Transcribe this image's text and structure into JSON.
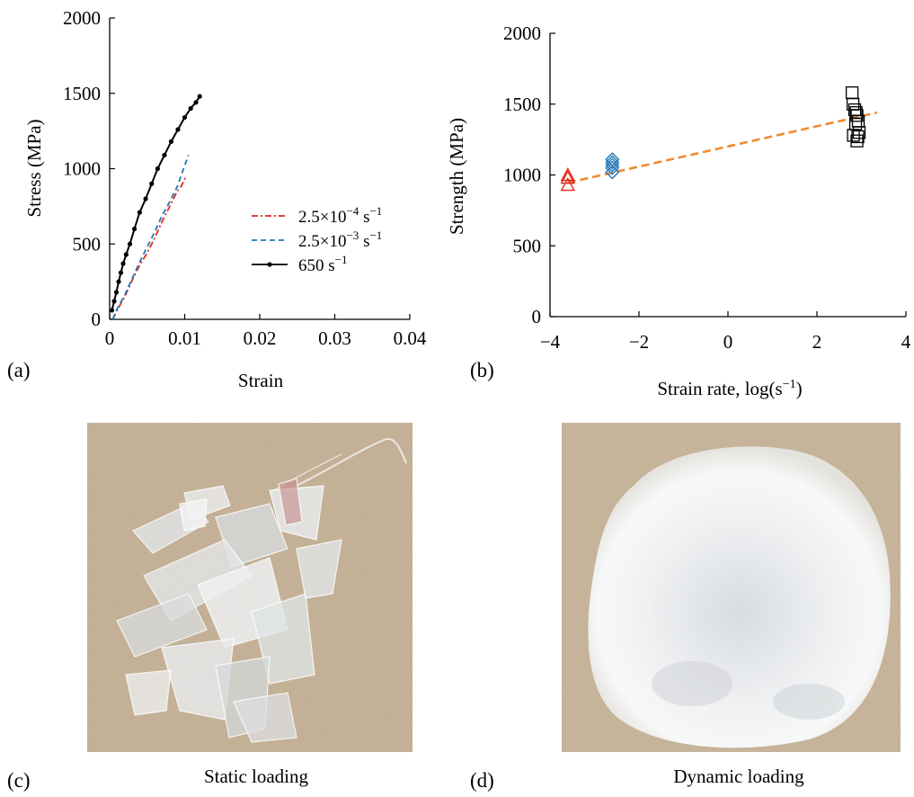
{
  "panels": {
    "a_label": "(a)",
    "b_label": "(b)",
    "c_label": "(c)",
    "d_label": "(d)",
    "c_caption": "Static loading",
    "d_caption": "Dynamic loading"
  },
  "chart_data": [
    {
      "type": "line",
      "xlabel": "Strain",
      "ylabel": "Stress (MPa)",
      "xlim": [
        0,
        0.04
      ],
      "ylim": [
        0,
        2000
      ],
      "xticks": [
        0,
        0.01,
        0.02,
        0.03,
        0.04
      ],
      "xtick_labels": [
        "0",
        "0.01",
        "0.02",
        "0.03",
        "0.04"
      ],
      "yticks": [
        0,
        500,
        1000,
        1500,
        2000
      ],
      "ytick_labels": [
        "0",
        "500",
        "1000",
        "1500",
        "2000"
      ],
      "grid": false,
      "legend_position": "right",
      "series": [
        {
          "name_base": "2.5×10",
          "name_exp": "−4",
          "name_unit": " s",
          "name_unit_exp": "−1",
          "style": "dash-dot",
          "color": "#e0281e",
          "x": [
            0.0004,
            0.001,
            0.002,
            0.003,
            0.004,
            0.005,
            0.006,
            0.007,
            0.008,
            0.009,
            0.0095,
            0.0102
          ],
          "y": [
            0,
            60,
            150,
            260,
            360,
            440,
            540,
            650,
            750,
            850,
            880,
            950
          ]
        },
        {
          "name_base": "2.5×10",
          "name_exp": "−3",
          "name_unit": " s",
          "name_unit_exp": "−1",
          "style": "dashed",
          "color": "#1f77b4",
          "x": [
            0.0004,
            0.001,
            0.002,
            0.003,
            0.004,
            0.005,
            0.006,
            0.007,
            0.008,
            0.009,
            0.0105
          ],
          "y": [
            0,
            70,
            160,
            270,
            380,
            480,
            580,
            690,
            780,
            880,
            1090
          ]
        },
        {
          "name_base": "650",
          "name_exp": "",
          "name_unit": " s",
          "name_unit_exp": "−1",
          "style": "solid-markers",
          "color": "#000000",
          "x": [
            0.0003,
            0.0006,
            0.0009,
            0.0012,
            0.0015,
            0.0018,
            0.0022,
            0.0027,
            0.0033,
            0.004,
            0.0048,
            0.0056,
            0.0064,
            0.0073,
            0.0082,
            0.0091,
            0.01,
            0.0108,
            0.0115,
            0.012
          ],
          "y": [
            60,
            120,
            180,
            250,
            310,
            370,
            430,
            500,
            600,
            710,
            800,
            900,
            1000,
            1090,
            1180,
            1260,
            1340,
            1400,
            1440,
            1480
          ]
        }
      ]
    },
    {
      "type": "scatter",
      "xlabel_base": "Strain rate, log(s",
      "xlabel_exp": "−1",
      "xlabel_end": ")",
      "ylabel": "Strength (MPa)",
      "xlim": [
        -4,
        4
      ],
      "ylim": [
        0,
        2000
      ],
      "xticks": [
        -4,
        -2,
        0,
        2,
        4
      ],
      "xtick_labels": [
        "−4",
        "−2",
        "0",
        "2",
        "4"
      ],
      "yticks": [
        0,
        500,
        1000,
        1500,
        2000
      ],
      "ytick_labels": [
        "0",
        "500",
        "1000",
        "1500",
        "2000"
      ],
      "grid": false,
      "series": [
        {
          "marker": "triangle",
          "color": "#e0281e",
          "x": [
            -3.6,
            -3.6,
            -3.6
          ],
          "y": [
            930,
            980,
            1000
          ]
        },
        {
          "marker": "diamond",
          "color": "#1f77b4",
          "x": [
            -2.6,
            -2.6,
            -2.6,
            -2.6,
            -2.6
          ],
          "y": [
            1020,
            1050,
            1070,
            1090,
            1110
          ]
        },
        {
          "marker": "square",
          "color": "#000000",
          "x": [
            2.79,
            2.81,
            2.85,
            2.88,
            2.9,
            2.93,
            2.87,
            2.95,
            2.82,
            2.92,
            2.9
          ],
          "y": [
            1580,
            1500,
            1460,
            1440,
            1420,
            1380,
            1360,
            1300,
            1280,
            1270,
            1240
          ]
        }
      ],
      "fit_line": {
        "style": "dashed",
        "color": "#f08a30",
        "x": [
          -3.6,
          3.35
        ],
        "y": [
          945,
          1440
        ]
      }
    }
  ],
  "photos": [
    {
      "theme": "clear shard fragments on beige background",
      "background": "#c7b49a"
    },
    {
      "theme": "white powder heap on beige background",
      "background": "#c9b79d"
    }
  ]
}
